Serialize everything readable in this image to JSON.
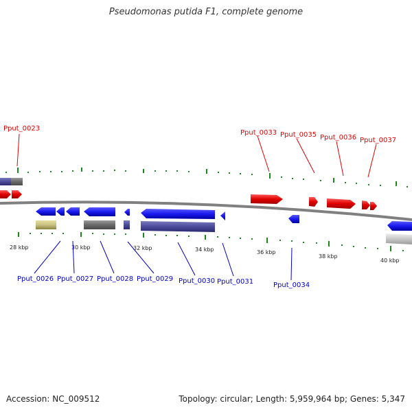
{
  "header": {
    "title": "Pseudomonas putida F1, complete genome"
  },
  "footer": {
    "accession": "Accession: NC_009512",
    "summary": "Topology: circular; Length: 5,959,964 bp; Genes: 5,347"
  },
  "colors": {
    "plus_strand": "#e00000",
    "minus_strand": "#1a1aee",
    "backbone": "#808080",
    "ticks": "#1a8a1a",
    "gene_product": "#4a4a9a",
    "pseudo_gray": "#6a6a6a",
    "olive": "#c8c080"
  },
  "scale_labels": [
    "28 kbp",
    "30 kbp",
    "32 kbp",
    "34 kbp",
    "36 kbp",
    "38 kbp",
    "40 kbp"
  ],
  "genes_plus": [
    "Pput_0023",
    "Pput_0033",
    "Pput_0035",
    "Pput_0036",
    "Pput_0037"
  ],
  "genes_minus": [
    "Pput_0026",
    "Pput_0027",
    "Pput_0028",
    "Pput_0029",
    "Pput_0030",
    "Pput_0031",
    "Pput_0034"
  ]
}
